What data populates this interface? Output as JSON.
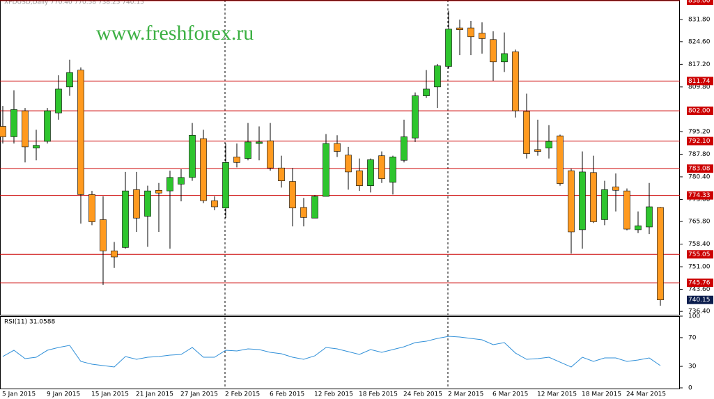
{
  "chart_data": [
    {
      "type": "candlestick",
      "title": "XPDUSD,Daily  770.40 770.58 738.25 740.15",
      "watermark": "www.freshforex.ru",
      "categories": [
        "5 Jan 2015",
        null,
        null,
        null,
        "9 Jan 2015",
        null,
        null,
        null,
        "15 Jan 2015",
        null,
        null,
        null,
        "21 Jan 2015",
        null,
        null,
        null,
        "27 Jan 2015",
        null,
        null,
        null,
        "2 Feb 2015",
        null,
        null,
        null,
        "6 Feb 2015",
        null,
        null,
        null,
        "12 Feb 2015",
        null,
        null,
        null,
        "18 Feb 2015",
        null,
        null,
        null,
        "24 Feb 2015",
        null,
        null,
        null,
        "2 Mar 2015",
        null,
        null,
        null,
        "6 Mar 2015",
        null,
        null,
        null,
        "12 Mar 2015",
        null,
        null,
        null,
        "18 Mar 2015",
        null,
        null,
        null,
        "24 Mar 2015",
        null,
        null,
        null
      ],
      "open": [
        796.9,
        793.5,
        802.0,
        789.8,
        792.0,
        801.3,
        809.8,
        815.3,
        774.6,
        766.4,
        756.2,
        757.3,
        776.2,
        767.5,
        776.0,
        775.8,
        778.0,
        780.2,
        792.9,
        772.6,
        770.2,
        786.9,
        786.4,
        791.3,
        792.2,
        783.3,
        778.9,
        770.4,
        766.9,
        774.0,
        791.3,
        787.5,
        782.4,
        777.5,
        787.3,
        778.6,
        785.8,
        793.1,
        806.9,
        809.8,
        816.5,
        829.1,
        829.1,
        827.4,
        825.3,
        818.0,
        821.3,
        801.8,
        789.3,
        789.8,
        793.8,
        782.4,
        763.1,
        781.8,
        766.4,
        777.1,
        775.8,
        763.1,
        764.0,
        770.4
      ],
      "high": [
        803.6,
        808.7,
        802.9,
        795.8,
        802.9,
        813.6,
        818.7,
        816.2,
        775.8,
        774.0,
        759.1,
        782.0,
        782.0,
        777.5,
        778.4,
        782.4,
        782.9,
        798.0,
        795.8,
        774.0,
        791.3,
        791.3,
        798.0,
        796.9,
        798.0,
        787.3,
        783.3,
        773.5,
        774.4,
        794.4,
        794.0,
        790.2,
        786.4,
        786.4,
        788.7,
        787.3,
        799.1,
        808.0,
        815.3,
        817.3,
        834.7,
        831.8,
        831.4,
        830.9,
        828.0,
        827.6,
        822.0,
        807.6,
        799.1,
        797.3,
        794.2,
        783.1,
        788.7,
        787.3,
        779.1,
        781.5,
        776.6,
        769.1,
        778.4,
        770.58
      ],
      "low": [
        791.3,
        791.3,
        785.1,
        785.8,
        791.3,
        799.1,
        806.9,
        765.1,
        764.6,
        745.1,
        750.6,
        756.9,
        762.4,
        757.5,
        762.4,
        756.9,
        772.4,
        779.1,
        771.8,
        769.5,
        766.9,
        783.5,
        785.8,
        785.8,
        782.4,
        776.9,
        764.2,
        764.2,
        766.9,
        774.0,
        786.9,
        776.2,
        775.8,
        775.3,
        778.4,
        774.6,
        785.1,
        791.8,
        806.2,
        802.9,
        815.8,
        820.2,
        820.2,
        820.7,
        811.8,
        814.7,
        799.8,
        786.4,
        787.3,
        786.4,
        777.5,
        755.3,
        756.9,
        765.3,
        764.6,
        769.1,
        762.9,
        762.0,
        761.7,
        738.25
      ],
      "close": [
        793.5,
        802.4,
        790.2,
        790.7,
        802.0,
        809.1,
        814.5,
        774.6,
        765.7,
        756.2,
        754.2,
        775.8,
        766.9,
        775.8,
        775.1,
        780.2,
        780.2,
        794.0,
        772.6,
        770.6,
        785.1,
        785.1,
        791.8,
        791.8,
        783.3,
        779.1,
        770.2,
        767.1,
        774.0,
        791.3,
        788.7,
        782.0,
        777.5,
        786.0,
        779.8,
        786.9,
        793.5,
        806.9,
        809.1,
        816.7,
        828.7,
        828.5,
        826.2,
        825.6,
        818.0,
        820.7,
        802.0,
        788.0,
        788.7,
        792.0,
        778.2,
        762.4,
        782.0,
        765.7,
        776.2,
        776.0,
        763.3,
        764.4,
        770.6,
        740.15
      ],
      "up_color": "#2ec52e",
      "down_color": "#ff9a1f",
      "ylim": [
        735.3,
        838.0
      ],
      "yticks": [
        {
          "value": 831.8,
          "label": "831.80"
        },
        {
          "value": 824.6,
          "label": "824.60"
        },
        {
          "value": 817.2,
          "label": "817.20"
        },
        {
          "value": 809.8,
          "label": "809.80"
        },
        {
          "value": 795.2,
          "label": "795.20"
        },
        {
          "value": 787.8,
          "label": "787.80"
        },
        {
          "value": 780.4,
          "label": "780.40"
        },
        {
          "value": 773,
          "label": "773.00"
        },
        {
          "value": 765.8,
          "label": "765.80"
        },
        {
          "value": 758.4,
          "label": "758.40"
        },
        {
          "value": 751,
          "label": "751.00"
        },
        {
          "value": 743.6,
          "label": "743.60"
        },
        {
          "value": 736.4,
          "label": "736.40"
        }
      ],
      "levels": [
        {
          "value": 838,
          "label": "838.00"
        },
        {
          "value": 811.74,
          "label": "811.74"
        },
        {
          "value": 802,
          "label": "802.00"
        },
        {
          "value": 792.1,
          "label": "792.10"
        },
        {
          "value": 783.08,
          "label": "783.08"
        },
        {
          "value": 774.33,
          "label": "774.33"
        },
        {
          "value": 755.05,
          "label": "755.05"
        },
        {
          "value": 745.76,
          "label": "745.76"
        }
      ],
      "level_color": "#cc0000",
      "last_price_color": "#0b1d4d"
    },
    {
      "type": "line",
      "title": "RSI(11) 31.0588",
      "values": [
        43.7,
        52.4,
        40.8,
        42.7,
        52.4,
        56.3,
        59.2,
        36.9,
        33.0,
        31.1,
        29.1,
        43.7,
        39.8,
        42.7,
        43.7,
        45.6,
        46.6,
        56.3,
        42.7,
        42.7,
        52.4,
        51.5,
        54.4,
        53.4,
        49.5,
        47.6,
        42.7,
        39.8,
        44.7,
        56.3,
        54.4,
        50.5,
        46.6,
        53.4,
        49.5,
        53.4,
        57.3,
        63.1,
        65.0,
        68.9,
        71.8,
        70.9,
        68.9,
        67.0,
        60.2,
        63.1,
        48.5,
        39.8,
        40.8,
        42.7,
        35.9,
        29.1,
        42.7,
        36.9,
        41.7,
        41.7,
        36.9,
        38.8,
        41.7,
        31.0588
      ],
      "color": "#2f8fd8",
      "ylim": [
        0,
        100
      ],
      "yticks": [
        0,
        30,
        70,
        100
      ]
    }
  ]
}
